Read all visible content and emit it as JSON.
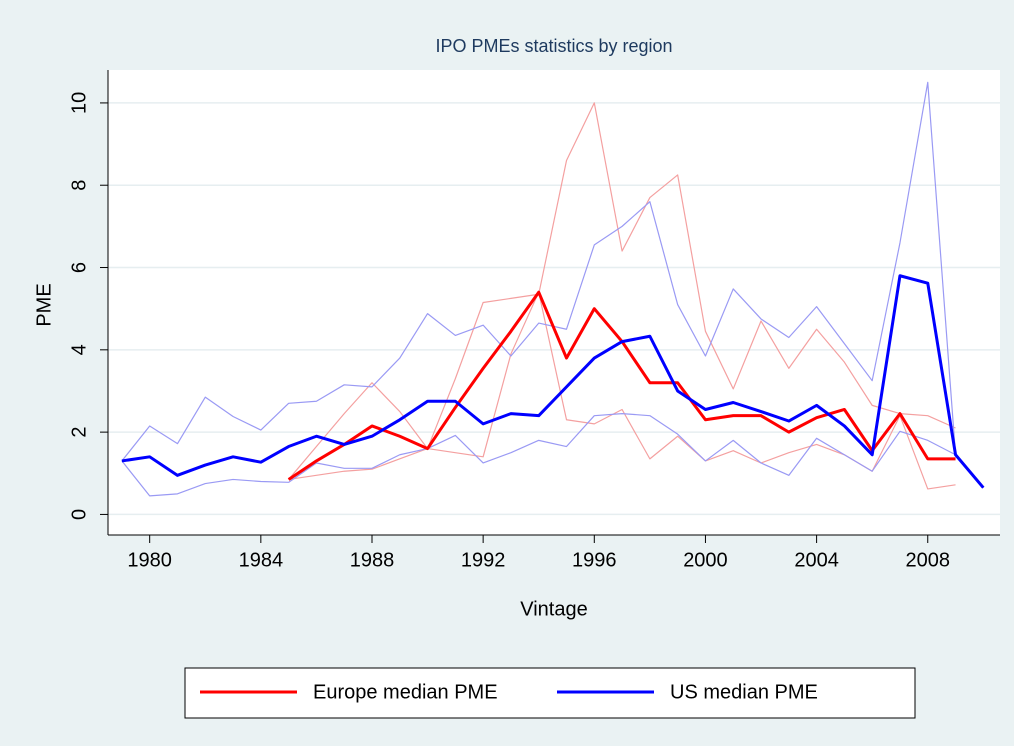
{
  "chart_data": {
    "type": "line",
    "title": "IPO PMEs statistics by region",
    "xlabel": "Vintage",
    "ylabel": "PME",
    "x": [
      1979,
      1980,
      1981,
      1982,
      1983,
      1984,
      1985,
      1986,
      1987,
      1988,
      1989,
      1990,
      1991,
      1992,
      1993,
      1994,
      1995,
      1996,
      1997,
      1998,
      1999,
      2000,
      2001,
      2002,
      2003,
      2004,
      2005,
      2006,
      2007,
      2008,
      2009,
      2010
    ],
    "series": [
      {
        "color": "#f4a0a0",
        "values": [
          null,
          null,
          null,
          null,
          null,
          null,
          0.85,
          1.65,
          2.45,
          3.2,
          2.5,
          1.6,
          3.3,
          5.15,
          5.25,
          5.35,
          8.6,
          10.0,
          6.4,
          7.7,
          8.25,
          4.45,
          3.05,
          4.7,
          3.55,
          4.5,
          3.7,
          2.65,
          2.45,
          2.4,
          2.1,
          null
        ]
      },
      {
        "color": "#f4a0a0",
        "values": [
          null,
          null,
          null,
          null,
          null,
          null,
          0.85,
          0.95,
          1.05,
          1.1,
          1.35,
          1.6,
          1.5,
          1.4,
          3.9,
          5.4,
          2.3,
          2.2,
          2.55,
          1.35,
          1.9,
          1.3,
          1.55,
          1.25,
          1.5,
          1.7,
          1.45,
          1.05,
          2.4,
          0.62,
          0.72,
          null
        ]
      },
      {
        "color": "#9a9af4",
        "values": [
          1.3,
          2.15,
          1.72,
          2.85,
          2.38,
          2.05,
          2.7,
          2.75,
          3.15,
          3.1,
          3.8,
          4.88,
          4.35,
          4.6,
          3.85,
          4.65,
          4.5,
          6.55,
          7.0,
          7.6,
          5.1,
          3.85,
          5.48,
          4.75,
          4.3,
          5.05,
          4.15,
          3.25,
          6.6,
          10.5,
          1.45,
          0.65
        ]
      },
      {
        "color": "#9a9af4",
        "values": [
          1.3,
          0.45,
          0.5,
          0.75,
          0.85,
          0.8,
          0.78,
          1.25,
          1.12,
          1.12,
          1.45,
          1.6,
          1.92,
          1.25,
          1.5,
          1.8,
          1.65,
          2.4,
          2.45,
          2.4,
          1.95,
          1.3,
          1.8,
          1.25,
          0.95,
          1.85,
          1.45,
          1.05,
          2.02,
          1.8,
          1.45,
          0.65
        ]
      },
      {
        "name": "Europe median PME",
        "color": "#ff0000",
        "values": [
          null,
          null,
          null,
          null,
          null,
          null,
          0.85,
          1.3,
          1.7,
          2.15,
          1.9,
          1.6,
          2.6,
          3.55,
          4.45,
          5.4,
          3.8,
          5.0,
          4.2,
          3.2,
          3.2,
          2.3,
          2.4,
          2.4,
          2.0,
          2.35,
          2.55,
          1.55,
          2.45,
          1.35,
          1.35,
          null
        ]
      },
      {
        "name": "US median PME",
        "color": "#0000ff",
        "values": [
          1.3,
          1.4,
          0.95,
          1.2,
          1.4,
          1.27,
          1.65,
          1.9,
          1.7,
          1.9,
          2.3,
          2.75,
          2.75,
          2.2,
          2.45,
          2.4,
          3.1,
          3.8,
          4.2,
          4.33,
          3.0,
          2.55,
          2.72,
          2.5,
          2.27,
          2.65,
          2.15,
          1.45,
          5.8,
          5.62,
          1.45,
          0.65
        ]
      }
    ],
    "xlim": [
      1978.5,
      2010.6
    ],
    "xticks": [
      1980,
      1984,
      1988,
      1992,
      1996,
      2000,
      2004,
      2008
    ],
    "ylim": [
      -0.5,
      10.8
    ],
    "yticks": [
      0,
      2,
      4,
      6,
      8,
      10
    ],
    "grid": true,
    "legend": "bottom"
  }
}
